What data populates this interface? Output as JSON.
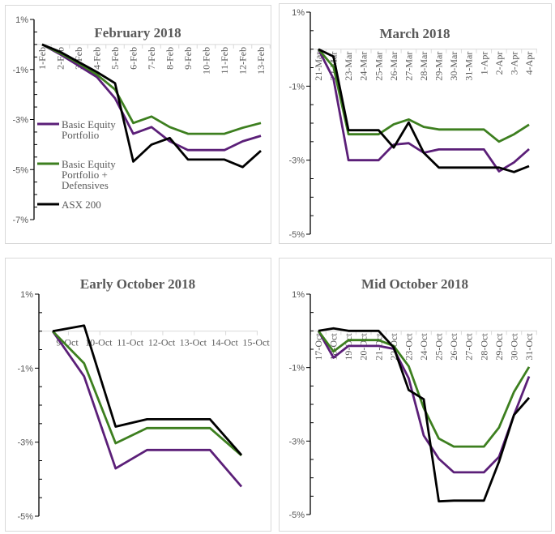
{
  "colors": {
    "Basic Equity Portfolio": "#5b1f78",
    "Basic Equity Portfolio + Defensives": "#3d7f1f",
    "ASX 200": "#000000"
  },
  "legend": {
    "items": [
      {
        "label_lines": [
          "Basic Equity",
          "Portfolio"
        ],
        "series": "Basic Equity Portfolio"
      },
      {
        "label_lines": [
          "Basic Equity",
          "Portfolio +",
          "Defensives"
        ],
        "series": "Basic Equity Portfolio + Defensives"
      },
      {
        "label_lines": [
          "ASX 200"
        ],
        "series": "ASX 200"
      }
    ]
  },
  "chart_data": [
    {
      "type": "line",
      "title": "February 2018",
      "xlabel": "",
      "ylabel": "",
      "ylim": [
        -7,
        1
      ],
      "yticks": [
        "1%",
        "-1%",
        "-3%",
        "-5%",
        "-7%"
      ],
      "ytick_values": [
        1,
        -1,
        -3,
        -5,
        -7
      ],
      "legend": "left-inside",
      "categories": [
        "1-Feb",
        "2-Feb",
        "3-Feb",
        "4-Feb",
        "5-Feb",
        "6-Feb",
        "7-Feb",
        "8-Feb",
        "9-Feb",
        "10-Feb",
        "11-Feb",
        "12-Feb",
        "13-Feb"
      ],
      "series": [
        {
          "name": "Basic Equity Portfolio",
          "values": [
            0,
            -0.4,
            -0.85,
            -1.3,
            -2.15,
            -3.57,
            -3.3,
            -3.87,
            -4.22,
            -4.22,
            -4.22,
            -3.87,
            -3.65
          ]
        },
        {
          "name": "Basic Equity Portfolio + Defensives",
          "values": [
            0,
            -0.35,
            -0.75,
            -1.2,
            -1.8,
            -3.14,
            -2.88,
            -3.3,
            -3.57,
            -3.57,
            -3.57,
            -3.33,
            -3.14
          ]
        },
        {
          "name": "ASX 200",
          "values": [
            0,
            -0.3,
            -0.7,
            -1.1,
            -1.55,
            -4.68,
            -4.0,
            -3.74,
            -4.6,
            -4.6,
            -4.6,
            -4.9,
            -4.25
          ]
        }
      ]
    },
    {
      "type": "line",
      "title": "March 2018",
      "xlabel": "",
      "ylabel": "",
      "ylim": [
        -5,
        1
      ],
      "yticks": [
        "1%",
        "-1%",
        "-3%",
        "-5%"
      ],
      "ytick_values": [
        1,
        -1,
        -3,
        -5
      ],
      "categories": [
        "21-Mar",
        "22-Mar",
        "23-Mar",
        "24-Mar",
        "25-Mar",
        "26-Mar",
        "27-Mar",
        "28-Mar",
        "29-Mar",
        "30-Mar",
        "31-Mar",
        "1-Apr",
        "2-Apr",
        "3-Apr",
        "4-Apr"
      ],
      "series": [
        {
          "name": "Basic Equity Portfolio",
          "values": [
            0,
            -0.8,
            -3.0,
            -3.0,
            -3.0,
            -2.58,
            -2.54,
            -2.8,
            -2.71,
            -2.71,
            -2.71,
            -2.71,
            -3.3,
            -3.06,
            -2.7
          ]
        },
        {
          "name": "Basic Equity Portfolio + Defensives",
          "values": [
            0,
            -0.48,
            -2.3,
            -2.3,
            -2.3,
            -2.03,
            -1.9,
            -2.1,
            -2.17,
            -2.17,
            -2.17,
            -2.17,
            -2.5,
            -2.3,
            -2.04
          ]
        },
        {
          "name": "ASX 200",
          "values": [
            0,
            -0.2,
            -2.19,
            -2.19,
            -2.19,
            -2.66,
            -1.98,
            -2.8,
            -3.2,
            -3.2,
            -3.2,
            -3.2,
            -3.2,
            -3.32,
            -3.16
          ]
        }
      ]
    },
    {
      "type": "line",
      "title": "Early October 2018",
      "xlabel": "",
      "ylabel": "",
      "ylim": [
        -5,
        1
      ],
      "yticks": [
        "1%",
        "-1%",
        "-3%",
        "-5%"
      ],
      "ytick_values": [
        1,
        -1,
        -3,
        -5
      ],
      "categories": [
        "9-Oct",
        "10-Oct",
        "11-Oct",
        "12-Oct",
        "13-Oct",
        "14-Oct",
        "15-Oct"
      ],
      "series": [
        {
          "name": "Basic Equity Portfolio",
          "values": [
            0,
            -1.22,
            -3.71,
            -3.21,
            -3.21,
            -3.21,
            -4.2
          ]
        },
        {
          "name": "Basic Equity Portfolio + Defensives",
          "values": [
            0,
            -0.87,
            -3.03,
            -2.62,
            -2.62,
            -2.62,
            -3.36
          ]
        },
        {
          "name": "ASX 200",
          "values": [
            0,
            0.15,
            -2.58,
            -2.38,
            -2.38,
            -2.38,
            -3.35
          ]
        }
      ]
    },
    {
      "type": "line",
      "title": "Mid October 2018",
      "xlabel": "",
      "ylabel": "",
      "ylim": [
        -5,
        1
      ],
      "yticks": [
        "1%",
        "-1%",
        "-3%",
        "-5%"
      ],
      "ytick_values": [
        1,
        -1,
        -3,
        -5
      ],
      "categories": [
        "17-Oct",
        "18-Oct",
        "19-Oct",
        "20-Oct",
        "21-Oct",
        "22-Oct",
        "23-Oct",
        "24-Oct",
        "25-Oct",
        "26-Oct",
        "27-Oct",
        "28-Oct",
        "29-Oct",
        "30-Oct",
        "31-Oct"
      ],
      "series": [
        {
          "name": "Basic Equity Portfolio",
          "values": [
            0,
            -0.73,
            -0.41,
            -0.41,
            -0.41,
            -0.49,
            -1.29,
            -2.85,
            -3.48,
            -3.85,
            -3.85,
            -3.85,
            -3.43,
            -2.29,
            -1.24
          ]
        },
        {
          "name": "Basic Equity Portfolio + Defensives",
          "values": [
            0,
            -0.56,
            -0.25,
            -0.25,
            -0.25,
            -0.41,
            -0.96,
            -2.1,
            -2.93,
            -3.15,
            -3.15,
            -3.15,
            -2.63,
            -1.66,
            -0.98
          ]
        },
        {
          "name": "ASX 200",
          "values": [
            0,
            0.07,
            0,
            0,
            0,
            -0.45,
            -1.61,
            -1.86,
            -4.64,
            -4.62,
            -4.62,
            -4.62,
            -3.56,
            -2.29,
            -1.82
          ]
        }
      ]
    }
  ]
}
